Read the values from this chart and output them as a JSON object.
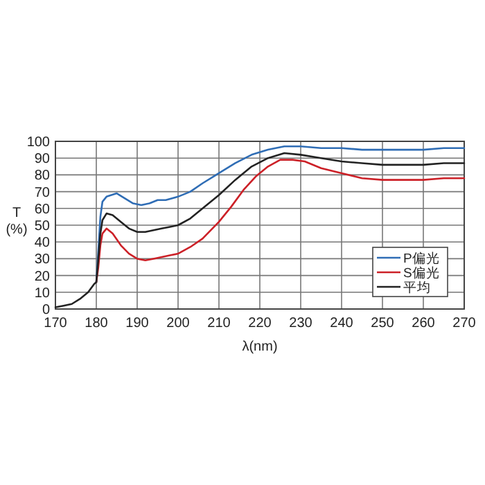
{
  "chart_data": {
    "type": "line",
    "xlabel": "λ(nm)",
    "ylabel": "T (%)",
    "xlim": [
      170,
      270
    ],
    "xticks": [
      170,
      180,
      190,
      200,
      210,
      220,
      230,
      240,
      250,
      260,
      270
    ],
    "ylim": [
      0,
      100
    ],
    "yticks": [
      0,
      10,
      20,
      30,
      40,
      50,
      60,
      70,
      80,
      90,
      100
    ],
    "grid": true,
    "legend": "bottom right",
    "line_style": "solid",
    "marker": "none",
    "series": [
      {
        "name": "P偏光",
        "color": "#2f6db5",
        "x": [
          180,
          180.5,
          181,
          181.5,
          182.5,
          185,
          187,
          189,
          191,
          193,
          195,
          197,
          200,
          203,
          206,
          210,
          214,
          218,
          222,
          226,
          230,
          235,
          240,
          245,
          250,
          255,
          260,
          265,
          270
        ],
        "values": [
          16,
          35,
          55,
          64,
          67,
          69,
          66,
          63,
          62,
          63,
          65,
          65,
          67,
          70,
          75,
          81,
          87,
          92,
          95,
          97,
          97,
          96,
          96,
          95,
          95,
          95,
          95,
          96,
          96
        ]
      },
      {
        "name": "S偏光",
        "color": "#cc2027",
        "x": [
          180,
          180.5,
          181,
          181.5,
          182.5,
          184,
          186,
          188,
          190,
          192,
          194,
          196,
          198,
          200,
          203,
          206,
          210,
          213,
          216,
          219,
          222,
          225,
          228,
          231,
          235,
          240,
          245,
          250,
          255,
          260,
          265,
          270
        ],
        "values": [
          16,
          25,
          38,
          45,
          48,
          45,
          38,
          33,
          30,
          29,
          30,
          31,
          32,
          33,
          37,
          42,
          52,
          61,
          71,
          79,
          85,
          89,
          89,
          88,
          84,
          81,
          78,
          77,
          77,
          77,
          78,
          78
        ]
      },
      {
        "name": "平均",
        "color": "#222222",
        "x": [
          170,
          172,
          174,
          176,
          178,
          179.5,
          180,
          180.5,
          181,
          181.5,
          182.5,
          184,
          186,
          188,
          190,
          192,
          194,
          196,
          198,
          200,
          203,
          206,
          210,
          214,
          218,
          222,
          226,
          230,
          235,
          240,
          245,
          250,
          255,
          260,
          265,
          270
        ],
        "values": [
          1,
          2,
          3,
          6,
          10,
          15,
          16,
          30,
          45,
          53,
          57,
          56,
          52,
          48,
          46,
          46,
          47,
          48,
          49,
          50,
          54,
          60,
          68,
          77,
          85,
          90,
          93,
          92,
          90,
          88,
          87,
          86,
          86,
          86,
          87,
          87
        ]
      }
    ]
  }
}
